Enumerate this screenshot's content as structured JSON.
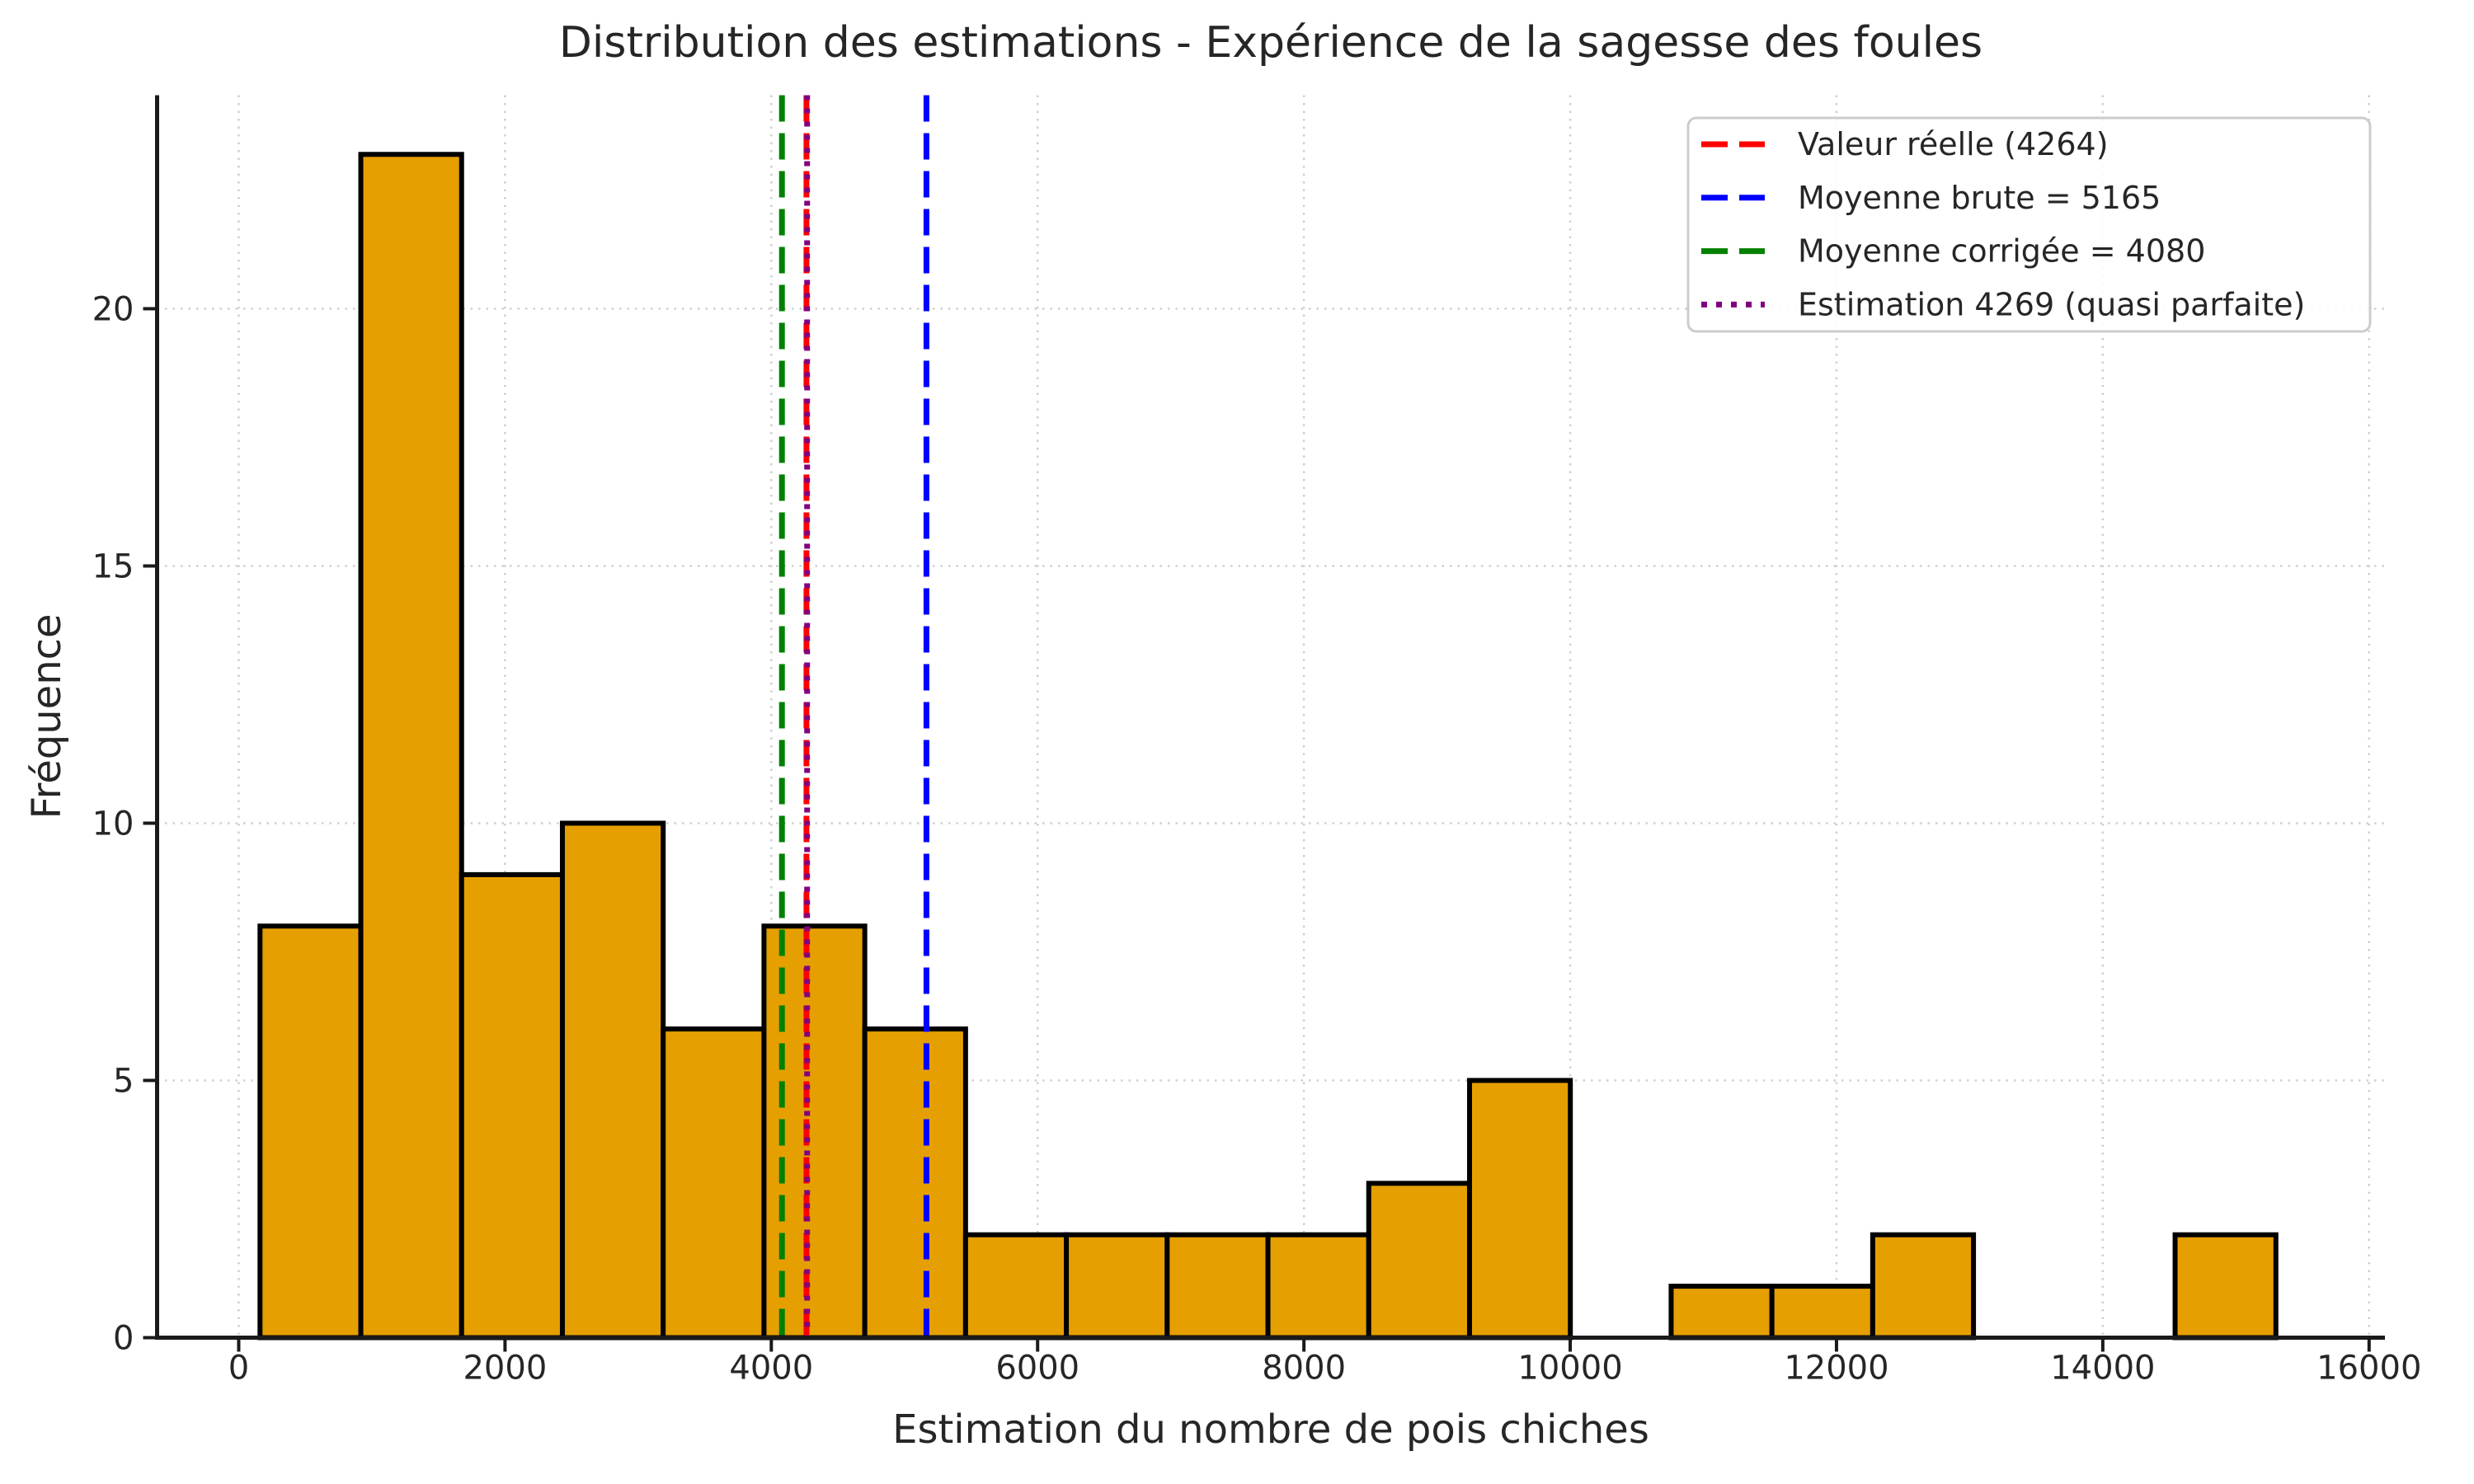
{
  "chart_data": {
    "type": "bar",
    "subtype": "histogram",
    "title": "Distribution des estimations - Expérience de la sagesse des foules",
    "xlabel": "Estimation du nombre de pois chiches",
    "ylabel": "Fréquence",
    "x_ticks": [
      0,
      2000,
      4000,
      6000,
      8000,
      10000,
      12000,
      14000,
      16000
    ],
    "y_ticks": [
      0,
      5,
      10,
      15,
      20
    ],
    "xlim": [
      -613,
      16119
    ],
    "ylim": [
      0,
      24.15
    ],
    "grid": true,
    "grid_style": "dotted",
    "legend_position": "upper right",
    "background": "#FFFFFF",
    "text_color": "#262626",
    "bar_color": "#E69F00",
    "bar_edge_color": "#000000",
    "grid_color": "#CFCFCF",
    "spine_color": "#1A1A1A",
    "bin_edges": [
      160,
      917,
      1674,
      2431,
      3188,
      3945,
      4702,
      5459,
      6216,
      6973,
      7730,
      8487,
      9244,
      10001,
      10758,
      11515,
      12272,
      13029,
      13786,
      14543,
      15300
    ],
    "counts": [
      8,
      23,
      9,
      10,
      6,
      8,
      6,
      2,
      2,
      2,
      2,
      3,
      5,
      0,
      1,
      1,
      2,
      0,
      0,
      2
    ],
    "vlines": [
      {
        "value": 4264,
        "color": "#FF0000",
        "style": "dashed",
        "label": "Valeur réelle (4264)"
      },
      {
        "value": 5165,
        "color": "#0000FF",
        "style": "dashed",
        "label": "Moyenne brute = 5165"
      },
      {
        "value": 4080,
        "color": "#008000",
        "style": "dashed",
        "label": "Moyenne corrigée = 4080"
      },
      {
        "value": 4269,
        "color": "#800080",
        "style": "dotted",
        "label": "Estimation 4269 (quasi parfaite)"
      }
    ]
  }
}
